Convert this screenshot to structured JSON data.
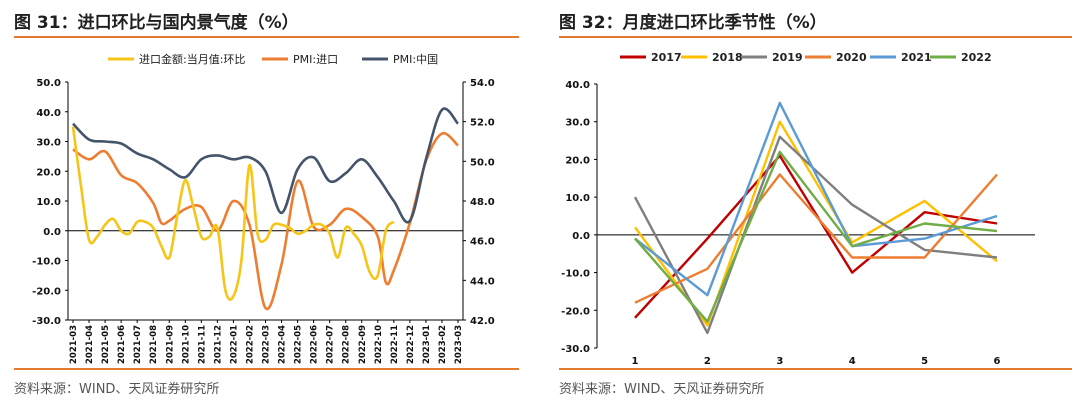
{
  "left": {
    "title": "图 31：进口环比与国内景气度（%）",
    "source": "资料来源：WIND、天风证券研究所"
  },
  "right": {
    "title": "图 32：月度进口环比季节性（%）",
    "source": "资料来源：WIND、天风证券研究所"
  },
  "chart_data": [
    {
      "type": "line",
      "x": [
        "2021-03",
        "2021-04",
        "2021-05",
        "2021-06",
        "2021-07",
        "2021-08",
        "2021-09",
        "2021-10",
        "2021-11",
        "2021-12",
        "2022-01",
        "2022-02",
        "2022-03",
        "2022-04",
        "2022-05",
        "2022-06",
        "2022-07",
        "2022-08",
        "2022-09",
        "2022-10",
        "2022-11",
        "2022-12",
        "2023-01",
        "2023-02",
        "2023-03"
      ],
      "y_left_ticks": [
        "50.0",
        "40.0",
        "30.0",
        "20.0",
        "10.0",
        "0.0",
        "-10.0",
        "-20.0",
        "-30.0"
      ],
      "y_right_ticks": [
        "54.0",
        "52.0",
        "50.0",
        "48.0",
        "46.0",
        "44.0",
        "42.0"
      ],
      "ylim_left": [
        -30,
        50
      ],
      "ylim_right": [
        42,
        54
      ],
      "legend_position": "top",
      "series": [
        {
          "name": "进口金额:当月值:环比",
          "axis": "left",
          "color": "#f5c518",
          "points": [
            [
              0,
              35
            ],
            [
              0.5,
              15
            ],
            [
              1,
              -3
            ],
            [
              1.5,
              -2
            ],
            [
              2,
              2
            ],
            [
              2.5,
              4
            ],
            [
              3,
              0
            ],
            [
              3.5,
              -1
            ],
            [
              4,
              3
            ],
            [
              4.5,
              3
            ],
            [
              5,
              1
            ],
            [
              5.5,
              -5
            ],
            [
              6,
              -9
            ],
            [
              6.5,
              5
            ],
            [
              7,
              17
            ],
            [
              7.5,
              8
            ],
            [
              8,
              -2
            ],
            [
              8.5,
              -2
            ],
            [
              9,
              1
            ],
            [
              9.5,
              -20
            ],
            [
              10,
              -22
            ],
            [
              10.5,
              -10
            ],
            [
              11,
              22
            ],
            [
              11.5,
              -1
            ],
            [
              12,
              -3
            ],
            [
              12.5,
              2
            ],
            [
              13,
              2
            ],
            [
              13.5,
              1
            ],
            [
              14,
              -1
            ],
            [
              14.5,
              0
            ],
            [
              15,
              2
            ],
            [
              15.5,
              2
            ],
            [
              16,
              -1
            ],
            [
              16.5,
              -9
            ],
            [
              17,
              1
            ],
            [
              17.5,
              -1
            ],
            [
              18,
              -5
            ],
            [
              18.5,
              -14
            ],
            [
              19,
              -15
            ],
            [
              19.5,
              0
            ],
            [
              20,
              3
            ]
          ]
        },
        {
          "name": "PMI:进口",
          "axis": "right",
          "color": "#ed7d31",
          "points": [
            [
              0,
              50.6
            ],
            [
              1,
              50.1
            ],
            [
              2,
              50.5
            ],
            [
              3,
              49.3
            ],
            [
              4,
              48.9
            ],
            [
              5,
              47.9
            ],
            [
              5.5,
              46.9
            ],
            [
              6,
              47.0
            ],
            [
              7,
              47.6
            ],
            [
              8,
              47.7
            ],
            [
              9,
              46.5
            ],
            [
              10,
              48.0
            ],
            [
              11,
              46.8
            ],
            [
              12,
              42.6
            ],
            [
              13,
              44.8
            ],
            [
              14,
              49.0
            ],
            [
              15,
              46.7
            ],
            [
              16,
              46.8
            ],
            [
              17,
              47.6
            ],
            [
              18,
              47.2
            ],
            [
              19,
              46.2
            ],
            [
              19.5,
              43.9
            ],
            [
              20,
              44.5
            ],
            [
              21,
              46.9
            ],
            [
              22,
              50.0
            ],
            [
              23,
              51.4
            ],
            [
              24,
              50.8
            ]
          ]
        },
        {
          "name": "PMI:中国",
          "axis": "right",
          "color": "#44546a",
          "points": [
            [
              0,
              51.9
            ],
            [
              1,
              51.1
            ],
            [
              2,
              51.0
            ],
            [
              3,
              50.9
            ],
            [
              4,
              50.4
            ],
            [
              5,
              50.1
            ],
            [
              6,
              49.6
            ],
            [
              7,
              49.2
            ],
            [
              8,
              50.1
            ],
            [
              9,
              50.3
            ],
            [
              10,
              50.1
            ],
            [
              11,
              50.2
            ],
            [
              12,
              49.5
            ],
            [
              13,
              47.4
            ],
            [
              14,
              49.6
            ],
            [
              15,
              50.2
            ],
            [
              16,
              49.0
            ],
            [
              17,
              49.4
            ],
            [
              18,
              50.1
            ],
            [
              19,
              49.2
            ],
            [
              20,
              48.0
            ],
            [
              21,
              47.0
            ],
            [
              22,
              50.1
            ],
            [
              23,
              52.6
            ],
            [
              24,
              51.9
            ]
          ]
        }
      ]
    },
    {
      "type": "line",
      "categories": [
        "1",
        "2",
        "3",
        "4",
        "5",
        "6"
      ],
      "y_ticks": [
        "40.0",
        "30.0",
        "20.0",
        "10.0",
        "0.0",
        "-10.0",
        "-20.0",
        "-30.0"
      ],
      "ylim": [
        -30,
        40
      ],
      "legend_position": "top",
      "series": [
        {
          "name": "2017",
          "color": "#c00000",
          "values": [
            -22,
            -1,
            21,
            -10,
            6,
            3
          ]
        },
        {
          "name": "2018",
          "color": "#ffc000",
          "values": [
            2,
            -24,
            30,
            -2,
            9,
            -7
          ]
        },
        {
          "name": "2019",
          "color": "#7f7f7f",
          "values": [
            10,
            -26,
            26,
            8,
            -4,
            -6
          ]
        },
        {
          "name": "2020",
          "color": "#ed7d31",
          "values": [
            -18,
            -9,
            16,
            -6,
            -6,
            16
          ]
        },
        {
          "name": "2021",
          "color": "#5b9bd5",
          "values": [
            -1,
            -16,
            35,
            -3,
            -1,
            5
          ]
        },
        {
          "name": "2022",
          "color": "#70ad47",
          "values": [
            -1,
            -23,
            22,
            -3,
            3,
            1
          ]
        }
      ]
    }
  ]
}
